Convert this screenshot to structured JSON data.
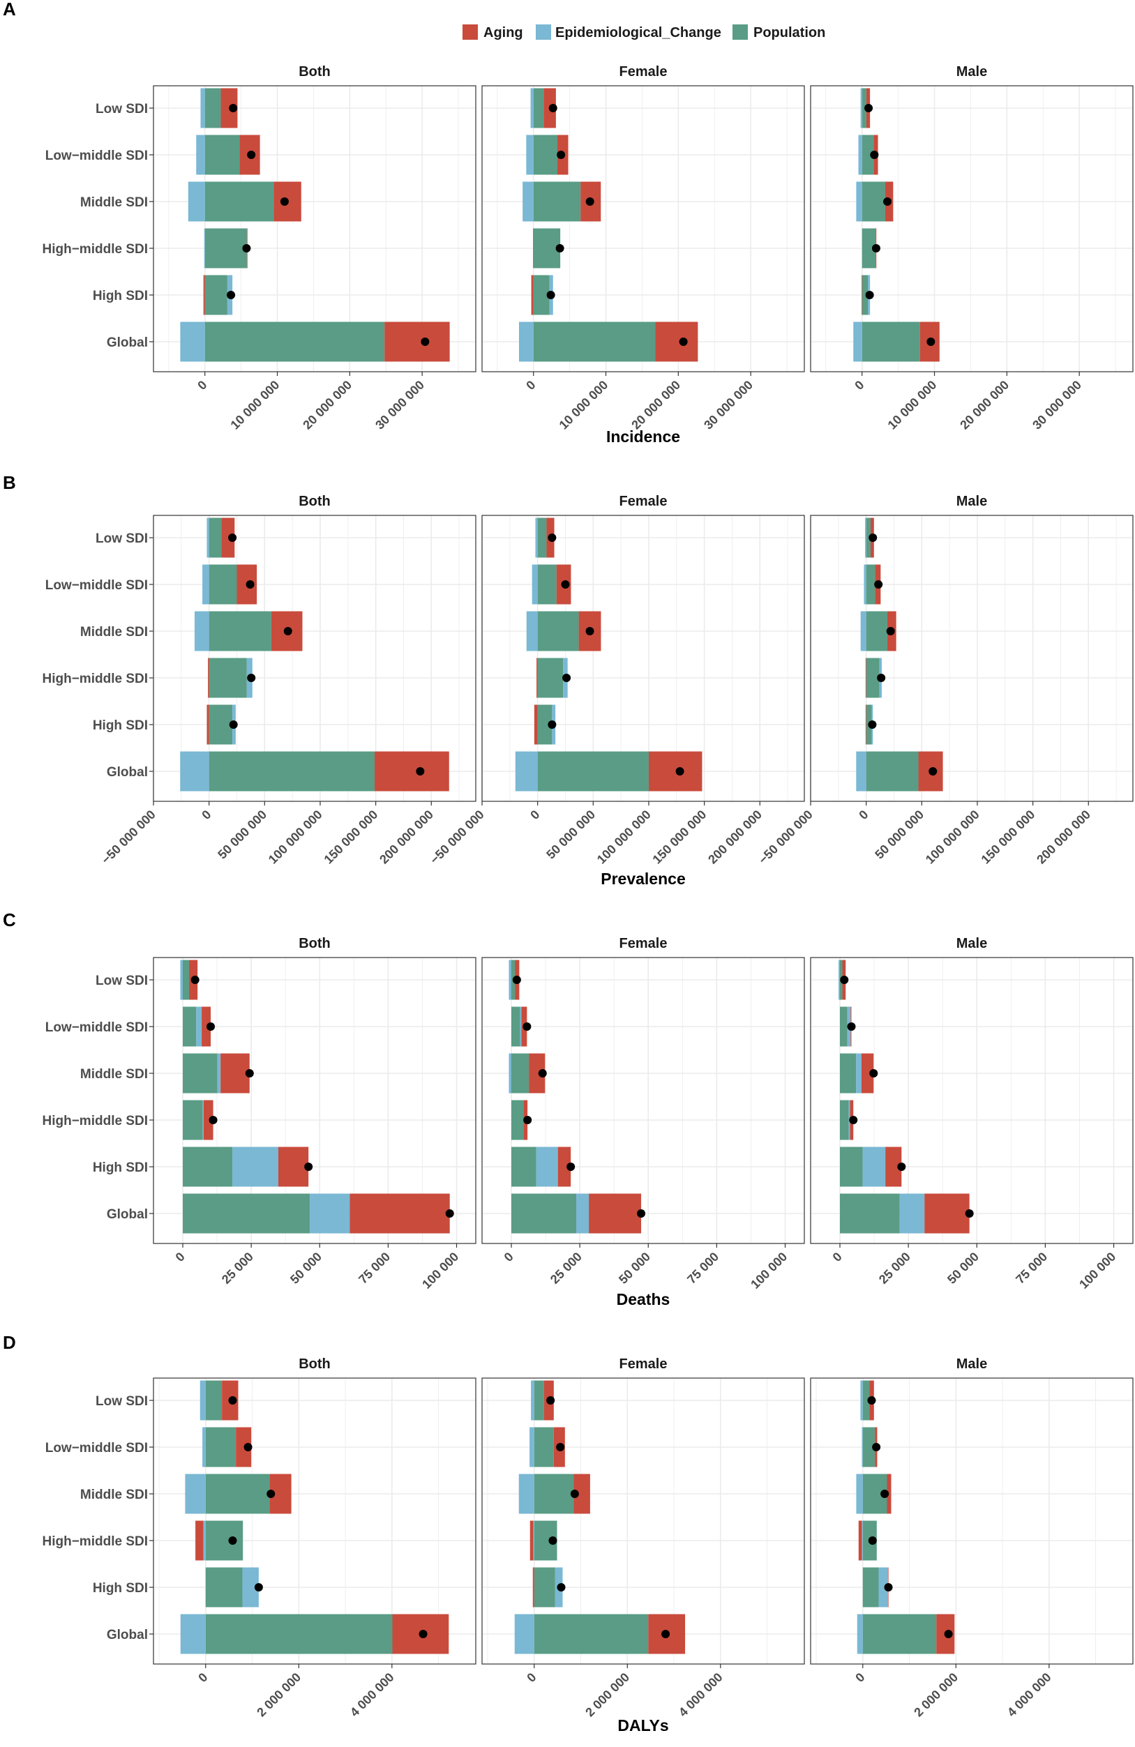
{
  "legend": {
    "items": [
      {
        "name": "Aging",
        "color": "#C94B3C"
      },
      {
        "name": "Epidemiological_Change",
        "color": "#7AB8D4"
      },
      {
        "name": "Population",
        "color": "#5A9C85"
      }
    ]
  },
  "chart_data": [
    {
      "panel": "A",
      "type": "bar",
      "orientation": "horizontal-stacked",
      "xlabel": "Incidence",
      "categories": [
        "Low SDI",
        "Low−middle SDI",
        "Middle SDI",
        "High−middle SDI",
        "High SDI",
        "Global"
      ],
      "xlim": [
        -7100000,
        37400000
      ],
      "ticks": [
        0,
        10000000,
        20000000,
        30000000
      ],
      "tick_labels": [
        "0",
        "10 000 000",
        "20 000 000",
        "30 000 000"
      ],
      "grid": true,
      "facets": [
        {
          "name": "Both",
          "series": [
            {
              "name": "Aging",
              "values": [
                2300000,
                2800000,
                3800000,
                50000,
                -200000,
                9000000
              ]
            },
            {
              "name": "Epidemiological_Change",
              "values": [
                -600000,
                -1200000,
                -2300000,
                -100000,
                700000,
                -3400000
              ]
            },
            {
              "name": "Population",
              "values": [
                2200000,
                4800000,
                9500000,
                5800000,
                3100000,
                24800000
              ]
            }
          ],
          "total": [
            3900000,
            6400000,
            11000000,
            5750000,
            3600000,
            30400000
          ]
        },
        {
          "name": "Female",
          "series": [
            {
              "name": "Aging",
              "values": [
                1700000,
                1500000,
                2800000,
                -50000,
                -300000,
                5900000
              ]
            },
            {
              "name": "Epidemiological_Change",
              "values": [
                -400000,
                -1000000,
                -1500000,
                0,
                500000,
                -2000000
              ]
            },
            {
              "name": "Population",
              "values": [
                1400000,
                3300000,
                6500000,
                3700000,
                2200000,
                16800000
              ]
            }
          ],
          "total": [
            2700000,
            3800000,
            7800000,
            3650000,
            2400000,
            20700000
          ]
        },
        {
          "name": "Male",
          "series": [
            {
              "name": "Aging",
              "values": [
                500000,
                600000,
                1100000,
                50000,
                -50000,
                2700000
              ]
            },
            {
              "name": "Epidemiological_Change",
              "values": [
                -200000,
                -500000,
                -800000,
                0,
                300000,
                -1200000
              ]
            },
            {
              "name": "Population",
              "values": [
                600000,
                1600000,
                3200000,
                1900000,
                800000,
                8000000
              ]
            }
          ],
          "total": [
            900000,
            1700000,
            3500000,
            1950000,
            1050000,
            9500000
          ]
        }
      ]
    },
    {
      "panel": "B",
      "type": "bar",
      "orientation": "horizontal-stacked",
      "xlabel": "Prevalence",
      "categories": [
        "Low SDI",
        "Low−middle SDI",
        "Middle SDI",
        "High−middle SDI",
        "High SDI",
        "Global"
      ],
      "xlim": [
        -50000000,
        240000000
      ],
      "ticks": [
        -50000000,
        0,
        50000000,
        100000000,
        150000000,
        200000000
      ],
      "tick_labels": [
        "−50 000 000",
        "0",
        "50 000 000",
        "100 000 000",
        "150 000 000",
        "200 000 000"
      ],
      "grid": true,
      "facets": [
        {
          "name": "Both",
          "series": [
            {
              "name": "Aging",
              "values": [
                12000000,
                18000000,
                28000000,
                -1000000,
                -2000000,
                67000000
              ]
            },
            {
              "name": "Epidemiological_Change",
              "values": [
                -2000000,
                -6000000,
                -13000000,
                5000000,
                3000000,
                -26000000
              ]
            },
            {
              "name": "Population",
              "values": [
                11000000,
                25000000,
                56000000,
                34000000,
                21000000,
                149000000
              ]
            }
          ],
          "total": [
            21000000,
            37000000,
            71000000,
            38000000,
            22000000,
            190000000
          ]
        },
        {
          "name": "Female",
          "series": [
            {
              "name": "Aging",
              "values": [
                7000000,
                13000000,
                20000000,
                -1000000,
                -3000000,
                48000000
              ]
            },
            {
              "name": "Epidemiological_Change",
              "values": [
                -2000000,
                -5000000,
                -10000000,
                4000000,
                3000000,
                -20000000
              ]
            },
            {
              "name": "Population",
              "values": [
                8000000,
                17000000,
                37000000,
                23000000,
                13000000,
                100000000
              ]
            }
          ],
          "total": [
            13000000,
            25000000,
            47000000,
            26000000,
            13000000,
            128000000
          ]
        },
        {
          "name": "Male",
          "series": [
            {
              "name": "Aging",
              "values": [
                3000000,
                5000000,
                8000000,
                -500000,
                -500000,
                22000000
              ]
            },
            {
              "name": "Epidemiological_Change",
              "values": [
                -1000000,
                -2000000,
                -5000000,
                2000000,
                1000000,
                -9000000
              ]
            },
            {
              "name": "Population",
              "values": [
                4000000,
                8000000,
                19000000,
                12000000,
                5000000,
                47000000
              ]
            }
          ],
          "total": [
            6000000,
            11000000,
            22000000,
            13500000,
            5500000,
            60000000
          ]
        }
      ]
    },
    {
      "panel": "C",
      "type": "bar",
      "orientation": "horizontal-stacked",
      "xlabel": "Deaths",
      "categories": [
        "Low SDI",
        "Low−middle SDI",
        "Middle SDI",
        "High−middle SDI",
        "High SDI",
        "Global"
      ],
      "xlim": [
        -10700,
        107000
      ],
      "ticks": [
        0,
        25000,
        50000,
        75000,
        100000
      ],
      "tick_labels": [
        "0",
        "25 000",
        "50 000",
        "75 000",
        "100 000"
      ],
      "grid": true,
      "facets": [
        {
          "name": "Both",
          "series": [
            {
              "name": "Aging",
              "values": [
                3100,
                3300,
                10600,
                3500,
                11000,
                36500
              ]
            },
            {
              "name": "Epidemiological_Change",
              "values": [
                -900,
                2000,
                1200,
                300,
                16800,
                14600
              ]
            },
            {
              "name": "Population",
              "values": [
                2300,
                4900,
                12600,
                7300,
                18100,
                46400
              ]
            }
          ],
          "total": [
            4500,
            10200,
            24400,
            11100,
            45900,
            97500
          ]
        },
        {
          "name": "Female",
          "series": [
            {
              "name": "Aging",
              "values": [
                1500,
                2000,
                5900,
                1500,
                4700,
                19100
              ]
            },
            {
              "name": "Epidemiological_Change",
              "values": [
                -900,
                500,
                -900,
                0,
                7900,
                4600
              ]
            },
            {
              "name": "Population",
              "values": [
                1400,
                3200,
                6400,
                4400,
                9100,
                23700
              ]
            }
          ],
          "total": [
            2000,
            5700,
            11400,
            5900,
            21700,
            47400
          ]
        },
        {
          "name": "Male",
          "series": [
            {
              "name": "Aging",
              "values": [
                1200,
                300,
                4400,
                1200,
                5900,
                16400
              ]
            },
            {
              "name": "Epidemiological_Change",
              "values": [
                -500,
                1200,
                2000,
                500,
                8300,
                9100
              ]
            },
            {
              "name": "Population",
              "values": [
                900,
                2700,
                5900,
                3200,
                8300,
                21800
              ]
            }
          ],
          "total": [
            1600,
            4200,
            12300,
            4900,
            22500,
            47300
          ]
        }
      ]
    },
    {
      "panel": "D",
      "type": "bar",
      "orientation": "horizontal-stacked",
      "xlabel": "DALYs",
      "categories": [
        "Low SDI",
        "Low−middle SDI",
        "Middle SDI",
        "High−middle SDI",
        "High SDI",
        "Global"
      ],
      "xlim": [
        -1120000,
        5800000
      ],
      "ticks": [
        0,
        2000000,
        4000000
      ],
      "tick_labels": [
        "0",
        "2 000 000",
        "4 000 000"
      ],
      "grid": true,
      "facets": [
        {
          "name": "Both",
          "series": [
            {
              "name": "Aging",
              "values": [
                350000,
                330000,
                470000,
                -170000,
                0,
                1210000
              ]
            },
            {
              "name": "Epidemiological_Change",
              "values": [
                -120000,
                -70000,
                -440000,
                -50000,
                350000,
                -540000
              ]
            },
            {
              "name": "Population",
              "values": [
                350000,
                650000,
                1370000,
                800000,
                790000,
                4010000
              ]
            }
          ],
          "total": [
            580000,
            910000,
            1400000,
            580000,
            1140000,
            4670000
          ]
        },
        {
          "name": "Female",
          "series": [
            {
              "name": "Aging",
              "values": [
                210000,
                240000,
                350000,
                -70000,
                -30000,
                790000
              ]
            },
            {
              "name": "Epidemiological_Change",
              "values": [
                -70000,
                -100000,
                -330000,
                -20000,
                160000,
                -420000
              ]
            },
            {
              "name": "Population",
              "values": [
                210000,
                420000,
                850000,
                490000,
                450000,
                2450000
              ]
            }
          ],
          "total": [
            350000,
            560000,
            870000,
            400000,
            580000,
            2820000
          ]
        },
        {
          "name": "Male",
          "series": [
            {
              "name": "Aging",
              "values": [
                100000,
                50000,
                90000,
                -70000,
                10000,
                390000
              ]
            },
            {
              "name": "Epidemiological_Change",
              "values": [
                -50000,
                -20000,
                -140000,
                -20000,
                200000,
                -120000
              ]
            },
            {
              "name": "Population",
              "values": [
                140000,
                260000,
                520000,
                300000,
                340000,
                1580000
              ]
            }
          ],
          "total": [
            190000,
            290000,
            470000,
            210000,
            550000,
            1840000
          ]
        }
      ]
    }
  ]
}
